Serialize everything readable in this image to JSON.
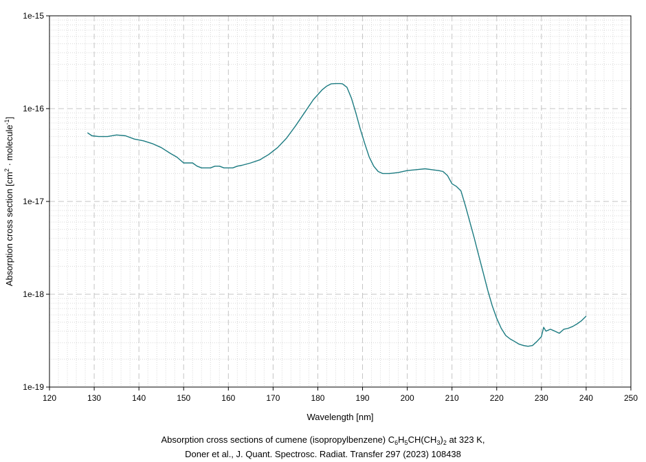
{
  "chart_data": {
    "type": "line",
    "xlabel": "Wavelength [nm]",
    "ylabel_parts": [
      "Absorption cross section [cm",
      "2",
      " · molecule",
      "-1",
      "]"
    ],
    "xlim": [
      120,
      250
    ],
    "ylim": [
      1e-19,
      1e-15
    ],
    "yscale": "log",
    "x_ticks": [
      "120",
      "130",
      "140",
      "150",
      "160",
      "170",
      "180",
      "190",
      "200",
      "210",
      "220",
      "230",
      "240",
      "250"
    ],
    "y_ticks": [
      "1e-19",
      "1e-18",
      "1e-17",
      "1e-16",
      "1e-15"
    ],
    "grid": true,
    "line_color": "#1a7a80",
    "series": [
      {
        "x": [
          128.5,
          129.5,
          131,
          133,
          135,
          137,
          139,
          141,
          143,
          145,
          147,
          148.5,
          150,
          151,
          152,
          153,
          154,
          155,
          156,
          157,
          158,
          159,
          160,
          161,
          162,
          163,
          165,
          167,
          169,
          171,
          173,
          175,
          177,
          179,
          181,
          182,
          183,
          184,
          185,
          185.5,
          186.5,
          187.5,
          188.5,
          189.5,
          190.5,
          191.5,
          192.5,
          193.5,
          194.5,
          196,
          198,
          200,
          202,
          204,
          205.5,
          207,
          208,
          209,
          210,
          211,
          212,
          213,
          214,
          215,
          216,
          217,
          218,
          219,
          220,
          221,
          222,
          223,
          224,
          225,
          226,
          227,
          228,
          229,
          230,
          230.5,
          231,
          232,
          233,
          234,
          235,
          236,
          237,
          238,
          239,
          240
        ],
        "y": [
          5.5e-17,
          5.1e-17,
          5e-17,
          5e-17,
          5.2e-17,
          5.1e-17,
          4.7e-17,
          4.5e-17,
          4.2e-17,
          3.8e-17,
          3.3e-17,
          3e-17,
          2.6e-17,
          2.6e-17,
          2.6e-17,
          2.4e-17,
          2.3e-17,
          2.3e-17,
          2.3e-17,
          2.4e-17,
          2.4e-17,
          2.3e-17,
          2.3e-17,
          2.3e-17,
          2.4e-17,
          2.45e-17,
          2.6e-17,
          2.8e-17,
          3.2e-17,
          3.8e-17,
          4.8e-17,
          6.5e-17,
          9e-17,
          1.25e-16,
          1.6e-16,
          1.75e-16,
          1.85e-16,
          1.86e-16,
          1.86e-16,
          1.85e-16,
          1.7e-16,
          1.3e-16,
          9e-17,
          6e-17,
          4.2e-17,
          3e-17,
          2.4e-17,
          2.1e-17,
          2e-17,
          2e-17,
          2.05e-17,
          2.15e-17,
          2.2e-17,
          2.25e-17,
          2.2e-17,
          2.15e-17,
          2.1e-17,
          1.9e-17,
          1.55e-17,
          1.45e-17,
          1.3e-17,
          9e-18,
          6e-18,
          4e-18,
          2.6e-18,
          1.7e-18,
          1.1e-18,
          7.5e-19,
          5.5e-19,
          4.3e-19,
          3.6e-19,
          3.3e-19,
          3.1e-19,
          2.9e-19,
          2.8e-19,
          2.75e-19,
          2.8e-19,
          3.1e-19,
          3.5e-19,
          4.4e-19,
          4e-19,
          4.2e-19,
          4e-19,
          3.8e-19,
          4.2e-19,
          4.3e-19,
          4.5e-19,
          4.8e-19,
          5.2e-19,
          5.8e-19
        ]
      }
    ]
  },
  "caption": {
    "line1": {
      "prefix": "Absorption cross sections of cumene (isopropylbenzene) C",
      "sub1": "6",
      "mid1": "H",
      "sub2": "5",
      "mid2": "CH(CH",
      "sub3": "3",
      "mid3": ")",
      "sub4": "2",
      "suffix": " at 323 K,"
    },
    "line2": "Doner et al., J. Quant. Spectrosc. Radiat. Transfer 297 (2023) 108438"
  }
}
